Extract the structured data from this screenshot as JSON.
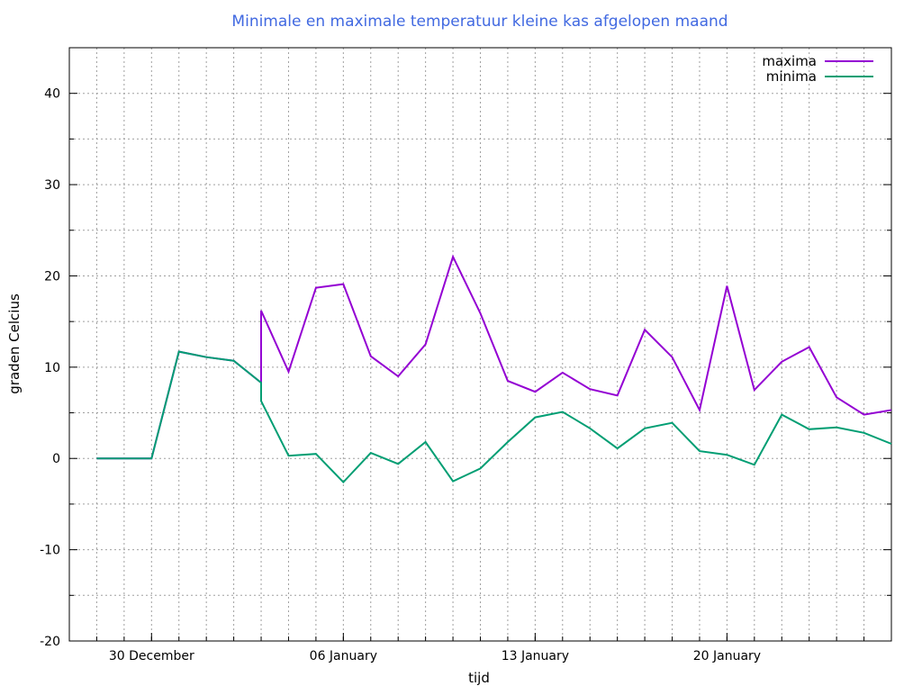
{
  "chart_data": {
    "type": "line",
    "title": "Minimale en maximale temperatuur kleine kas afgelopen maand",
    "title_color": "#4169e1",
    "xlabel": "tijd",
    "ylabel": "graden Celcius",
    "x_unit": "days since 27 December",
    "xlim": [
      0,
      30
    ],
    "ylim": [
      -20,
      45
    ],
    "yticks": [
      -20,
      -10,
      0,
      10,
      20,
      30,
      40
    ],
    "ytick_labels": [
      "-20",
      "-10",
      "0",
      "10",
      "20",
      "30",
      "40"
    ],
    "xticks": [
      3,
      10,
      17,
      24
    ],
    "xtick_labels": [
      "30 December",
      "06 January",
      "13 January",
      "20 January"
    ],
    "grid": true,
    "legend_position": "top-right",
    "series": [
      {
        "name": "maxima",
        "color": "#9400d3",
        "x": [
          1,
          2,
          3,
          4,
          5,
          6,
          7,
          7,
          8,
          9,
          10,
          11,
          12,
          13,
          14,
          15,
          16,
          17,
          18,
          19,
          20,
          21,
          22,
          23,
          24,
          25,
          26,
          27,
          28,
          29,
          30
        ],
        "y": [
          0,
          0,
          0,
          11.7,
          11.1,
          10.7,
          8.3,
          16.2,
          9.5,
          18.7,
          19.1,
          11.2,
          9.0,
          12.5,
          22.1,
          15.9,
          8.5,
          7.3,
          9.4,
          7.6,
          6.9,
          14.1,
          11.1,
          5.3,
          18.9,
          7.5,
          10.6,
          12.2,
          6.7,
          4.8,
          5.3
        ]
      },
      {
        "name": "minima",
        "color": "#009e73",
        "x": [
          1,
          2,
          3,
          4,
          5,
          6,
          7,
          7,
          8,
          9,
          10,
          11,
          12,
          13,
          14,
          15,
          16,
          17,
          18,
          19,
          20,
          21,
          22,
          23,
          24,
          25,
          26,
          27,
          28,
          29,
          30
        ],
        "y": [
          0,
          0,
          0,
          11.7,
          11.1,
          10.7,
          8.3,
          6.3,
          0.3,
          0.5,
          -2.6,
          0.6,
          -0.6,
          1.8,
          -2.5,
          -1.1,
          1.8,
          4.5,
          5.1,
          3.3,
          1.1,
          3.3,
          3.9,
          0.8,
          0.4,
          -0.7,
          4.8,
          3.2,
          3.4,
          2.8,
          1.6
        ]
      }
    ]
  }
}
